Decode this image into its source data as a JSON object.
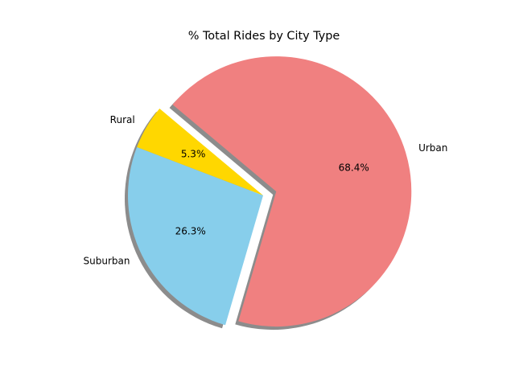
{
  "chart_data": {
    "type": "pie",
    "title": "% Total Rides by City Type",
    "slices": [
      {
        "label": "Rural",
        "value": 5.3,
        "pct_text": "5.3%",
        "color": "#ffd700"
      },
      {
        "label": "Suburban",
        "value": 26.3,
        "pct_text": "26.3%",
        "color": "#87ceeb"
      },
      {
        "label": "Urban",
        "value": 68.4,
        "pct_text": "68.4%",
        "color": "#f08080",
        "exploded": true
      }
    ],
    "start_angle_deg": 140,
    "shadow": true
  }
}
